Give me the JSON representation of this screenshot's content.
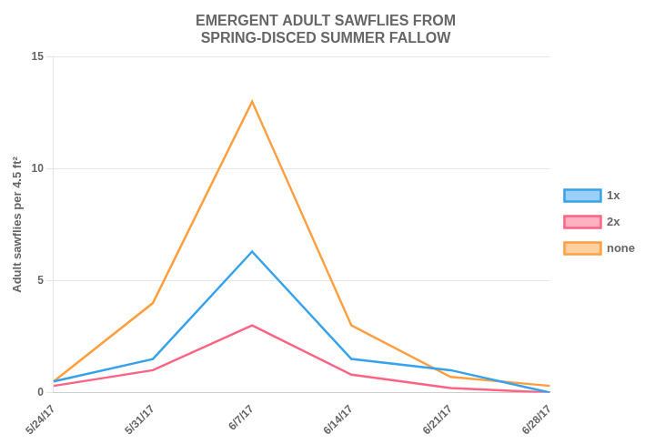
{
  "chart_data": {
    "type": "line",
    "title": "EMERGENT ADULT SAWFLIES FROM\nSPRING-DISCED SUMMER FALLOW",
    "y_label": "Adult sawflies per 4.5 ft²",
    "categories": [
      "5/24/17",
      "5/31/17",
      "6/7/17",
      "6/14/17",
      "6/21/17",
      "6/28/17"
    ],
    "series": [
      {
        "name": "1x",
        "values": [
          0.5,
          1.5,
          6.3,
          1.5,
          1.0,
          0.0
        ]
      },
      {
        "name": "2x",
        "values": [
          0.3,
          1.0,
          3.0,
          0.8,
          0.2,
          0.0
        ]
      },
      {
        "name": "none",
        "values": [
          0.5,
          4.0,
          13.0,
          3.0,
          0.7,
          0.3
        ]
      }
    ],
    "ylim": [
      0,
      15
    ],
    "yticks": [
      0,
      5,
      10,
      15
    ],
    "grid": "y",
    "legend": "right"
  }
}
